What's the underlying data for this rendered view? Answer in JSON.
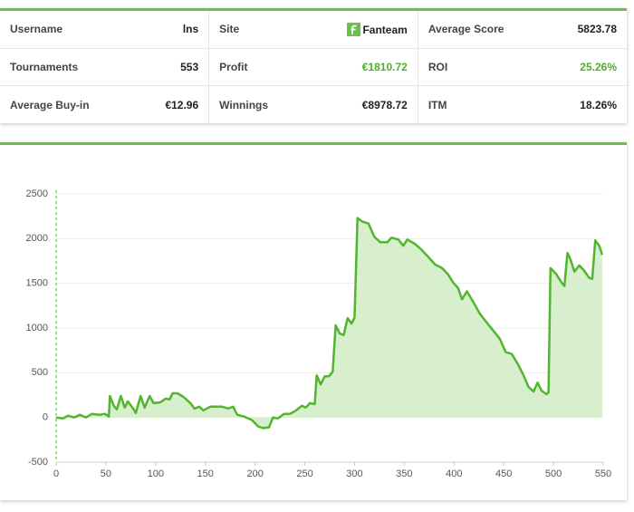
{
  "stats": {
    "rows": [
      [
        {
          "label": "Username",
          "value": "lns"
        },
        {
          "label": "Site",
          "value": "Fanteam"
        },
        {
          "label": "Average Score",
          "value": "5823.78"
        }
      ],
      [
        {
          "label": "Tournaments",
          "value": "553"
        },
        {
          "label": "Profit",
          "value": "€1810.72"
        },
        {
          "label": "ROI",
          "value": "25.26%"
        }
      ],
      [
        {
          "label": "Average Buy-in",
          "value": "€12.96"
        },
        {
          "label": "Winnings",
          "value": "€8978.72"
        },
        {
          "label": "ITM",
          "value": "18.26%"
        }
      ]
    ]
  },
  "chart_data": {
    "type": "area",
    "color": "#52b52f",
    "fill": "#d8efcd",
    "grid": true,
    "x": [
      0,
      7,
      12,
      18,
      24,
      30,
      36,
      44,
      49,
      53,
      54,
      58,
      61,
      65,
      69,
      72,
      78,
      80,
      85,
      89,
      94,
      98,
      105,
      110,
      114,
      117,
      122,
      128,
      135,
      139,
      144,
      148,
      155,
      167,
      173,
      178,
      182,
      189,
      197,
      203,
      208,
      214,
      218,
      223,
      229,
      235,
      240,
      247,
      251,
      255,
      260,
      262,
      266,
      270,
      274,
      278,
      281,
      285,
      289,
      293,
      297,
      300,
      303,
      308,
      314,
      320,
      326,
      333,
      337,
      344,
      349,
      353,
      361,
      367,
      373,
      381,
      388,
      394,
      399,
      404,
      408,
      413,
      419,
      426,
      433,
      441,
      446,
      452,
      458,
      464,
      470,
      475,
      480,
      484,
      488,
      493,
      495,
      497,
      503,
      508,
      511,
      514,
      517,
      521,
      526,
      531,
      536,
      539,
      542,
      546,
      549
    ],
    "values": [
      0,
      -10,
      20,
      0,
      30,
      0,
      40,
      30,
      40,
      10,
      240,
      130,
      90,
      240,
      110,
      180,
      90,
      50,
      240,
      110,
      240,
      160,
      170,
      210,
      200,
      270,
      270,
      230,
      160,
      100,
      120,
      80,
      120,
      120,
      100,
      120,
      30,
      10,
      -30,
      -100,
      -120,
      -110,
      0,
      -10,
      40,
      40,
      70,
      130,
      110,
      160,
      150,
      470,
      370,
      460,
      460,
      510,
      1030,
      940,
      920,
      1110,
      1050,
      1120,
      2230,
      2190,
      2170,
      2020,
      1960,
      1960,
      2010,
      1990,
      1920,
      1990,
      1940,
      1880,
      1810,
      1710,
      1670,
      1600,
      1510,
      1450,
      1320,
      1410,
      1300,
      1160,
      1060,
      950,
      880,
      730,
      710,
      600,
      470,
      340,
      290,
      390,
      300,
      260,
      280,
      1670,
      1600,
      1510,
      1470,
      1840,
      1770,
      1630,
      1700,
      1640,
      1560,
      1550,
      1980,
      1920,
      1820
    ],
    "xlim": [
      0,
      550
    ],
    "xticks": [
      0,
      50,
      100,
      150,
      200,
      250,
      300,
      350,
      400,
      450,
      500,
      550
    ],
    "ylim": [
      -500,
      2500
    ],
    "yticks": [
      -500,
      0,
      500,
      1000,
      1500,
      2000,
      2500
    ]
  }
}
